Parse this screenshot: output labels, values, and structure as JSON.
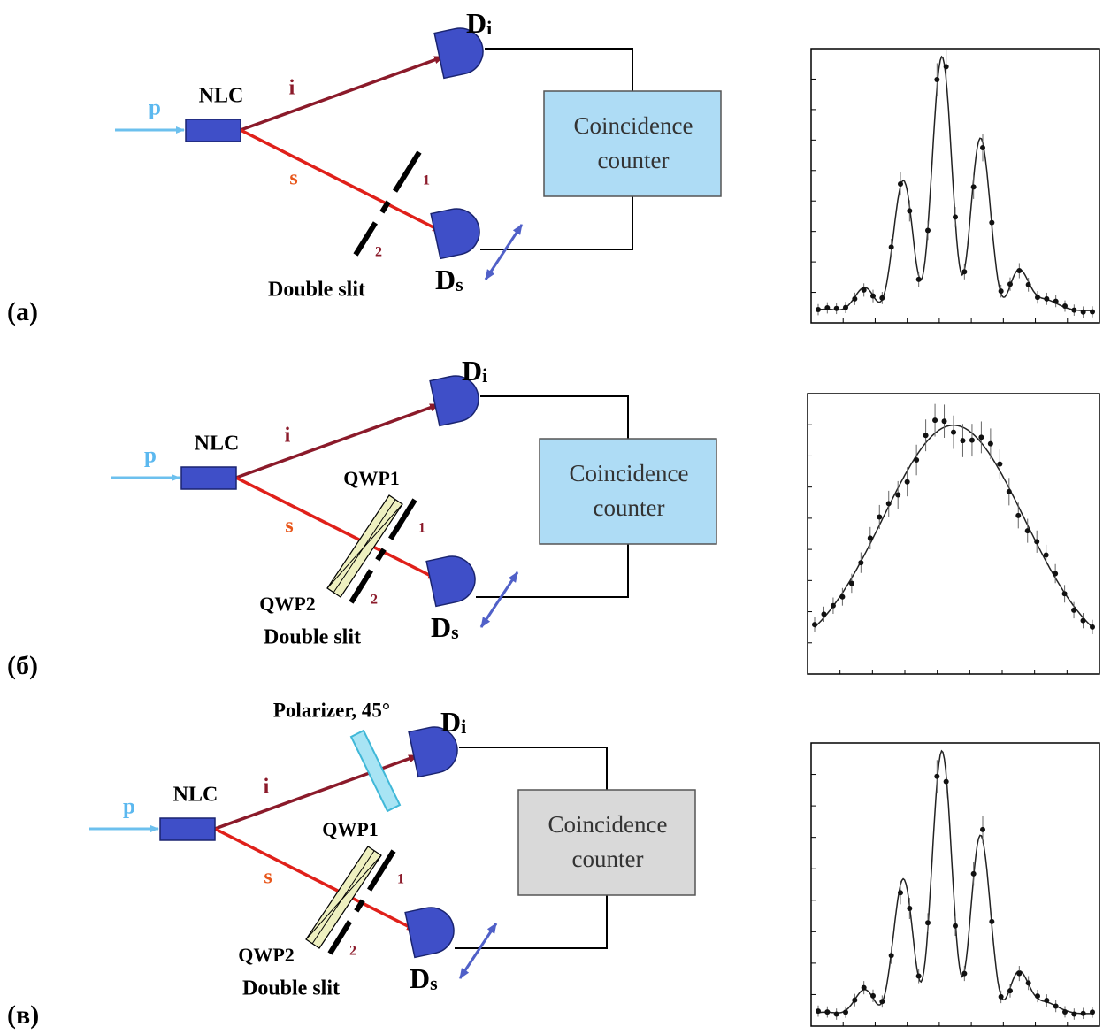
{
  "panels": [
    {
      "label": "(a)",
      "pump": "p",
      "crystal": "NLC",
      "idler": "i",
      "signal": "s",
      "slit_1": "1",
      "slit_2": "2",
      "slit": "Double slit",
      "counter": [
        "Coincidence",
        "counter"
      ],
      "detector_i": {
        "main": "D",
        "sub": "i"
      },
      "detector_s": {
        "main": "D",
        "sub": "s"
      }
    },
    {
      "label": "(б)",
      "pump": "p",
      "crystal": "NLC",
      "idler": "i",
      "signal": "s",
      "slit_1": "1",
      "slit_2": "2",
      "slit": "Double slit",
      "counter": [
        "Coincidence",
        "counter"
      ],
      "detector_i": {
        "main": "D",
        "sub": "i"
      },
      "detector_s": {
        "main": "D",
        "sub": "s"
      },
      "qwp1": "QWP1",
      "qwp2": "QWP2"
    },
    {
      "label": "(в)",
      "pump": "p",
      "crystal": "NLC",
      "idler": "i",
      "signal": "s",
      "slit_1": "1",
      "slit_2": "2",
      "slit": "Double slit",
      "counter": [
        "Coincidence",
        "counter"
      ],
      "detector_i": {
        "main": "D",
        "sub": "i"
      },
      "detector_s": {
        "main": "D",
        "sub": "s"
      },
      "qwp1": "QWP1",
      "qwp2": "QWP2",
      "polarizer": "Polarizer, 45°"
    }
  ]
}
